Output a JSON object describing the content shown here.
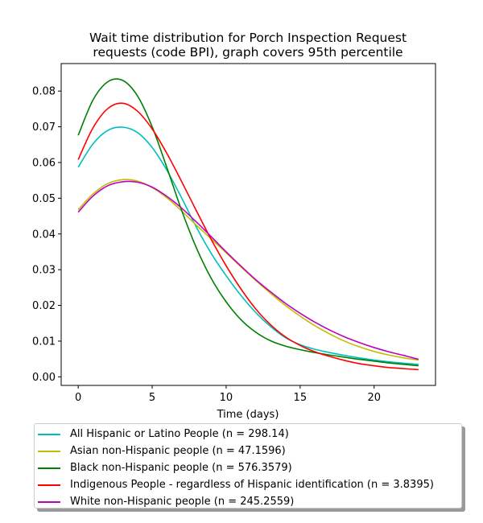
{
  "chart_data": {
    "type": "line",
    "title": "Wait time distribution  for Porch Inspection Request\nrequests (code BPI), graph covers 95th percentile",
    "xlabel": "Time (days)",
    "ylabel": "",
    "xlim": [
      -1.15,
      24.15
    ],
    "ylim": [
      -0.0024,
      0.0877
    ],
    "xticks": [
      0,
      5,
      10,
      15,
      20
    ],
    "xtick_labels": [
      "0",
      "5",
      "10",
      "15",
      "20"
    ],
    "yticks": [
      0.0,
      0.01,
      0.02,
      0.03,
      0.04,
      0.05,
      0.06,
      0.07,
      0.08
    ],
    "ytick_labels": [
      "0.00",
      "0.01",
      "0.02",
      "0.03",
      "0.04",
      "0.05",
      "0.06",
      "0.07",
      "0.08"
    ],
    "grid": false,
    "legend_position": "bottom",
    "series": [
      {
        "name": "All Hispanic or Latino People (n = 298.14)",
        "color": "#00bfbf",
        "x": [
          0,
          1,
          2,
          3,
          4,
          5,
          6,
          7,
          8,
          9,
          10,
          11,
          12,
          13,
          14,
          15,
          16,
          17,
          18,
          19,
          20,
          21,
          22,
          23
        ],
        "y": [
          0.0587,
          0.0652,
          0.069,
          0.0699,
          0.0684,
          0.0642,
          0.0578,
          0.05,
          0.0418,
          0.0345,
          0.0283,
          0.0228,
          0.018,
          0.0141,
          0.011,
          0.009,
          0.0077,
          0.0068,
          0.006,
          0.0053,
          0.0047,
          0.0042,
          0.0038,
          0.0035
        ]
      },
      {
        "name": "Asian non-Hispanic people (n = 47.1596)",
        "color": "#bfbf00",
        "x": [
          0,
          1,
          2,
          3,
          4,
          5,
          6,
          7,
          8,
          9,
          10,
          11,
          12,
          13,
          14,
          15,
          16,
          17,
          18,
          19,
          20,
          21,
          22,
          23
        ],
        "y": [
          0.0468,
          0.0512,
          0.0541,
          0.0552,
          0.0548,
          0.053,
          0.0501,
          0.0464,
          0.0424,
          0.0386,
          0.0347,
          0.0308,
          0.027,
          0.0234,
          0.02,
          0.017,
          0.0143,
          0.012,
          0.01,
          0.0084,
          0.0071,
          0.0061,
          0.0053,
          0.0047
        ]
      },
      {
        "name": "Black non-Hispanic people (n = 576.3579)",
        "color": "#008000",
        "x": [
          0,
          1,
          2,
          3,
          4,
          5,
          6,
          7,
          8,
          9,
          10,
          11,
          12,
          13,
          14,
          15,
          16,
          17,
          18,
          19,
          20,
          21,
          22,
          23
        ],
        "y": [
          0.0676,
          0.0775,
          0.0826,
          0.083,
          0.0787,
          0.07,
          0.0585,
          0.0465,
          0.036,
          0.0275,
          0.021,
          0.016,
          0.0125,
          0.0101,
          0.0086,
          0.0076,
          0.0068,
          0.0061,
          0.0055,
          0.0049,
          0.0044,
          0.0039,
          0.0035,
          0.0031
        ]
      },
      {
        "name": "Indigenous People - regardless of Hispanic identification (n = 3.8395)",
        "color": "#ff0000",
        "x": [
          0,
          1,
          2,
          3,
          4,
          5,
          6,
          7,
          8,
          9,
          10,
          11,
          12,
          13,
          14,
          15,
          16,
          17,
          18,
          19,
          20,
          21,
          22,
          23
        ],
        "y": [
          0.0608,
          0.0697,
          0.0751,
          0.0766,
          0.0744,
          0.0694,
          0.0625,
          0.0546,
          0.0464,
          0.0384,
          0.0311,
          0.0246,
          0.019,
          0.0146,
          0.0112,
          0.0088,
          0.007,
          0.0057,
          0.0046,
          0.0037,
          0.0031,
          0.0026,
          0.0023,
          0.002
        ]
      },
      {
        "name": "White non-Hispanic people (n = 245.2559)",
        "color": "#bf00bf",
        "x": [
          0,
          1,
          2,
          3,
          4,
          5,
          6,
          7,
          8,
          9,
          10,
          11,
          12,
          13,
          14,
          15,
          16,
          17,
          18,
          19,
          20,
          21,
          22,
          23
        ],
        "y": [
          0.0461,
          0.0506,
          0.0535,
          0.0546,
          0.0545,
          0.0531,
          0.0505,
          0.0472,
          0.0433,
          0.0392,
          0.035,
          0.031,
          0.0272,
          0.0238,
          0.0206,
          0.0178,
          0.0153,
          0.0131,
          0.0112,
          0.0096,
          0.0082,
          0.007,
          0.006,
          0.0049
        ]
      }
    ]
  }
}
